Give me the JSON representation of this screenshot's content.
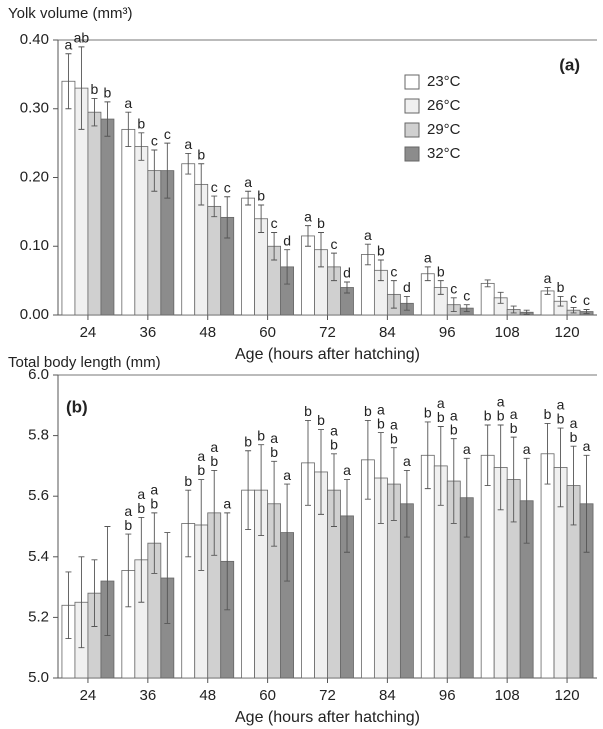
{
  "chart_data": [
    {
      "type": "bar",
      "title": "Yolk volume (mm³)",
      "panel_label": "(a)",
      "xlabel": "Age (hours after hatching)",
      "categories": [
        "24",
        "36",
        "48",
        "60",
        "72",
        "84",
        "96",
        "108",
        "120"
      ],
      "legend": "upper right",
      "ylim": [
        0,
        0.4
      ],
      "yticks": [
        {
          "value": 0,
          "label": "0.00"
        },
        {
          "value": 0.1,
          "label": "0.10"
        },
        {
          "value": 0.2,
          "label": "0.20"
        },
        {
          "value": 0.3,
          "label": "0.30"
        },
        {
          "value": 0.4,
          "label": "0.40"
        }
      ],
      "series": [
        {
          "name": "23°C",
          "color": "#ffffff",
          "values": [
            0.34,
            0.27,
            0.22,
            0.17,
            0.115,
            0.088,
            0.06,
            0.046,
            0.035
          ],
          "errors": [
            0.04,
            0.025,
            0.015,
            0.01,
            0.015,
            0.015,
            0.01,
            0.005,
            0.005
          ],
          "labels": [
            [
              "a"
            ],
            [
              "a"
            ],
            [
              "a"
            ],
            [
              "a"
            ],
            [
              "a"
            ],
            [
              "a"
            ],
            [
              "a"
            ],
            null,
            [
              "a"
            ]
          ]
        },
        {
          "name": "26°C",
          "color": "#f0f0f0",
          "values": [
            0.33,
            0.245,
            0.19,
            0.14,
            0.095,
            0.065,
            0.04,
            0.025,
            0.02
          ],
          "errors": [
            0.06,
            0.02,
            0.03,
            0.02,
            0.025,
            0.015,
            0.01,
            0.008,
            0.007
          ],
          "labels": [
            [
              "ab"
            ],
            [
              "b"
            ],
            [
              "b"
            ],
            [
              "b"
            ],
            [
              "b"
            ],
            [
              "b"
            ],
            [
              "b"
            ],
            null,
            [
              "b"
            ]
          ]
        },
        {
          "name": "29°C",
          "color": "#d0d0d0",
          "values": [
            0.295,
            0.21,
            0.158,
            0.1,
            0.07,
            0.03,
            0.015,
            0.008,
            0.007
          ],
          "errors": [
            0.02,
            0.03,
            0.015,
            0.02,
            0.02,
            0.02,
            0.01,
            0.005,
            0.004
          ],
          "labels": [
            [
              "b"
            ],
            [
              "c"
            ],
            [
              "c"
            ],
            [
              "c"
            ],
            [
              "c"
            ],
            [
              "c"
            ],
            [
              "c"
            ],
            null,
            [
              "c"
            ]
          ]
        },
        {
          "name": "32°C",
          "color": "#8c8c8c",
          "values": [
            0.285,
            0.21,
            0.142,
            0.07,
            0.04,
            0.017,
            0.01,
            0.004,
            0.005
          ],
          "errors": [
            0.025,
            0.04,
            0.03,
            0.025,
            0.008,
            0.01,
            0.005,
            0.003,
            0.003
          ],
          "labels": [
            [
              "b"
            ],
            [
              "c"
            ],
            [
              "c"
            ],
            [
              "d"
            ],
            [
              "d"
            ],
            [
              "d"
            ],
            [
              "c"
            ],
            null,
            [
              "c"
            ]
          ]
        }
      ]
    },
    {
      "type": "bar",
      "title": "Total body length (mm)",
      "panel_label": "(b)",
      "xlabel": "Age (hours after hatching)",
      "categories": [
        "24",
        "36",
        "48",
        "60",
        "72",
        "84",
        "96",
        "108",
        "120"
      ],
      "ylim": [
        5.0,
        6.0
      ],
      "yticks": [
        {
          "value": 5,
          "label": "5.0"
        },
        5.2,
        5.4,
        5.6,
        5.8,
        {
          "value": 6,
          "label": "6.0"
        }
      ],
      "series": [
        {
          "color": "#ffffff",
          "values": [
            5.24,
            5.355,
            5.51,
            5.62,
            5.71,
            5.72,
            5.735,
            5.735,
            5.74
          ],
          "errors": [
            0.11,
            0.12,
            0.11,
            0.13,
            0.14,
            0.13,
            0.11,
            0.1,
            0.1
          ],
          "labels": [
            null,
            [
              "a",
              "b"
            ],
            [
              "b"
            ],
            [
              "b"
            ],
            [
              "b"
            ],
            [
              "b"
            ],
            [
              "b"
            ],
            [
              "b"
            ],
            [
              "b"
            ]
          ]
        },
        {
          "color": "#f0f0f0",
          "values": [
            5.25,
            5.39,
            5.505,
            5.62,
            5.68,
            5.66,
            5.7,
            5.695,
            5.695
          ],
          "errors": [
            0.15,
            0.14,
            0.15,
            0.15,
            0.14,
            0.15,
            0.13,
            0.14,
            0.13
          ],
          "labels": [
            null,
            [
              "a",
              "b"
            ],
            [
              "a",
              "b"
            ],
            [
              "b"
            ],
            [
              "b"
            ],
            [
              "a",
              "b"
            ],
            [
              "a",
              "b"
            ],
            [
              "a",
              "b"
            ],
            [
              "a",
              "b"
            ]
          ]
        },
        {
          "color": "#d0d0d0",
          "values": [
            5.28,
            5.445,
            5.545,
            5.575,
            5.62,
            5.64,
            5.65,
            5.655,
            5.635
          ],
          "errors": [
            0.11,
            0.1,
            0.14,
            0.14,
            0.12,
            0.12,
            0.14,
            0.14,
            0.13
          ],
          "labels": [
            null,
            [
              "a",
              "b"
            ],
            [
              "a",
              "b"
            ],
            [
              "a",
              "b"
            ],
            [
              "a",
              "b"
            ],
            [
              "a",
              "b"
            ],
            [
              "a",
              "b"
            ],
            [
              "a",
              "b"
            ],
            [
              "a",
              "b"
            ]
          ]
        },
        {
          "color": "#8c8c8c",
          "values": [
            5.32,
            5.33,
            5.385,
            5.48,
            5.535,
            5.575,
            5.595,
            5.585,
            5.575
          ],
          "errors": [
            0.18,
            0.15,
            0.16,
            0.16,
            0.12,
            0.11,
            0.13,
            0.14,
            0.16
          ],
          "labels": [
            null,
            null,
            [
              "a"
            ],
            [
              "a"
            ],
            [
              "a"
            ],
            [
              "a"
            ],
            [
              "a"
            ],
            [
              "a"
            ],
            [
              "a"
            ]
          ]
        }
      ]
    }
  ]
}
